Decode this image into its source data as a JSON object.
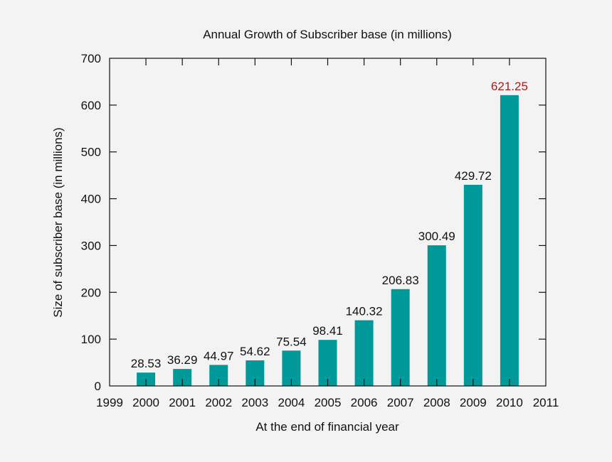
{
  "chart_data": {
    "type": "bar",
    "title": "Annual Growth of Subscriber base (in millions)",
    "xlabel": "At the end of financial year",
    "ylabel": "Size of subscriber base (in millions)",
    "categories": [
      "2000",
      "2001",
      "2002",
      "2003",
      "2004",
      "2005",
      "2006",
      "2007",
      "2008",
      "2009",
      "2010"
    ],
    "values": [
      28.53,
      36.29,
      44.97,
      54.62,
      75.54,
      98.41,
      140.32,
      206.83,
      300.49,
      429.72,
      621.25
    ],
    "data_labels": [
      "28.53",
      "36.29",
      "44.97",
      "54.62",
      "75.54",
      "98.41",
      "140.32",
      "206.83",
      "300.49",
      "429.72",
      "621.25"
    ],
    "x_ticks": [
      "1999",
      "2000",
      "2001",
      "2002",
      "2003",
      "2004",
      "2005",
      "2006",
      "2007",
      "2008",
      "2009",
      "2010",
      "2011"
    ],
    "xlim": [
      1999,
      2011
    ],
    "ylim": [
      0,
      700
    ],
    "y_ticks": [
      "0",
      "100",
      "200",
      "300",
      "400",
      "500",
      "600",
      "700"
    ],
    "grid": false,
    "bar_color": "#009999",
    "highlight_label_color": "#a61c1c",
    "highlight_index": 10
  }
}
